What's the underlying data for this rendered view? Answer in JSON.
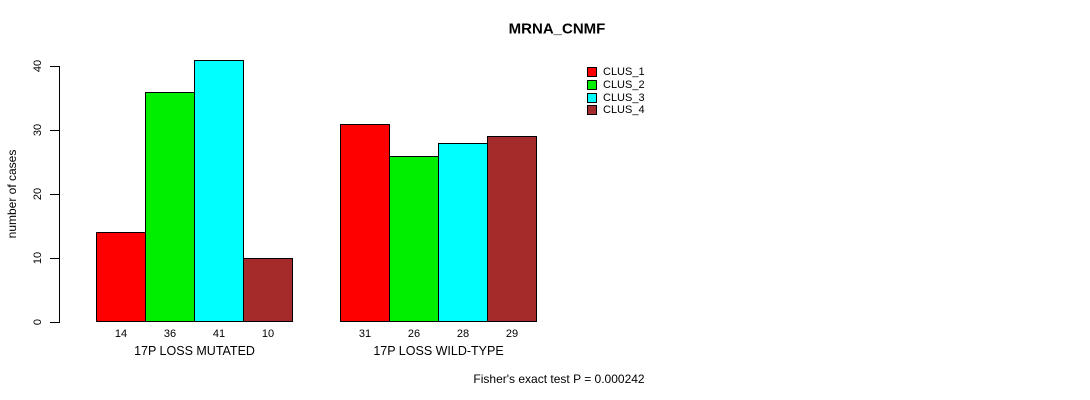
{
  "title": "MRNA_CNMF",
  "footer": "Fisher's exact test P = 0.000242",
  "chart_data": {
    "type": "bar",
    "title": "MRNA_CNMF",
    "xlabel": "",
    "ylabel": "number of cases",
    "ylim": [
      0,
      40
    ],
    "yticks": [
      0,
      10,
      20,
      30,
      40
    ],
    "grid": false,
    "legend_position": "top-right",
    "categories": [
      "17P LOSS MUTATED",
      "17P LOSS WILD-TYPE"
    ],
    "series": [
      {
        "name": "CLUS_1",
        "color": "#ff0000",
        "values": [
          14,
          31
        ]
      },
      {
        "name": "CLUS_2",
        "color": "#00ee00",
        "values": [
          36,
          26
        ]
      },
      {
        "name": "CLUS_3",
        "color": "#00ffff",
        "values": [
          41,
          28
        ]
      },
      {
        "name": "CLUS_4",
        "color": "#a52a2a",
        "values": [
          10,
          29
        ]
      }
    ],
    "bar_value_labels": [
      [
        14,
        36,
        41,
        10
      ],
      [
        31,
        26,
        28,
        29
      ]
    ],
    "annotation": "Fisher's exact test P = 0.000242"
  }
}
